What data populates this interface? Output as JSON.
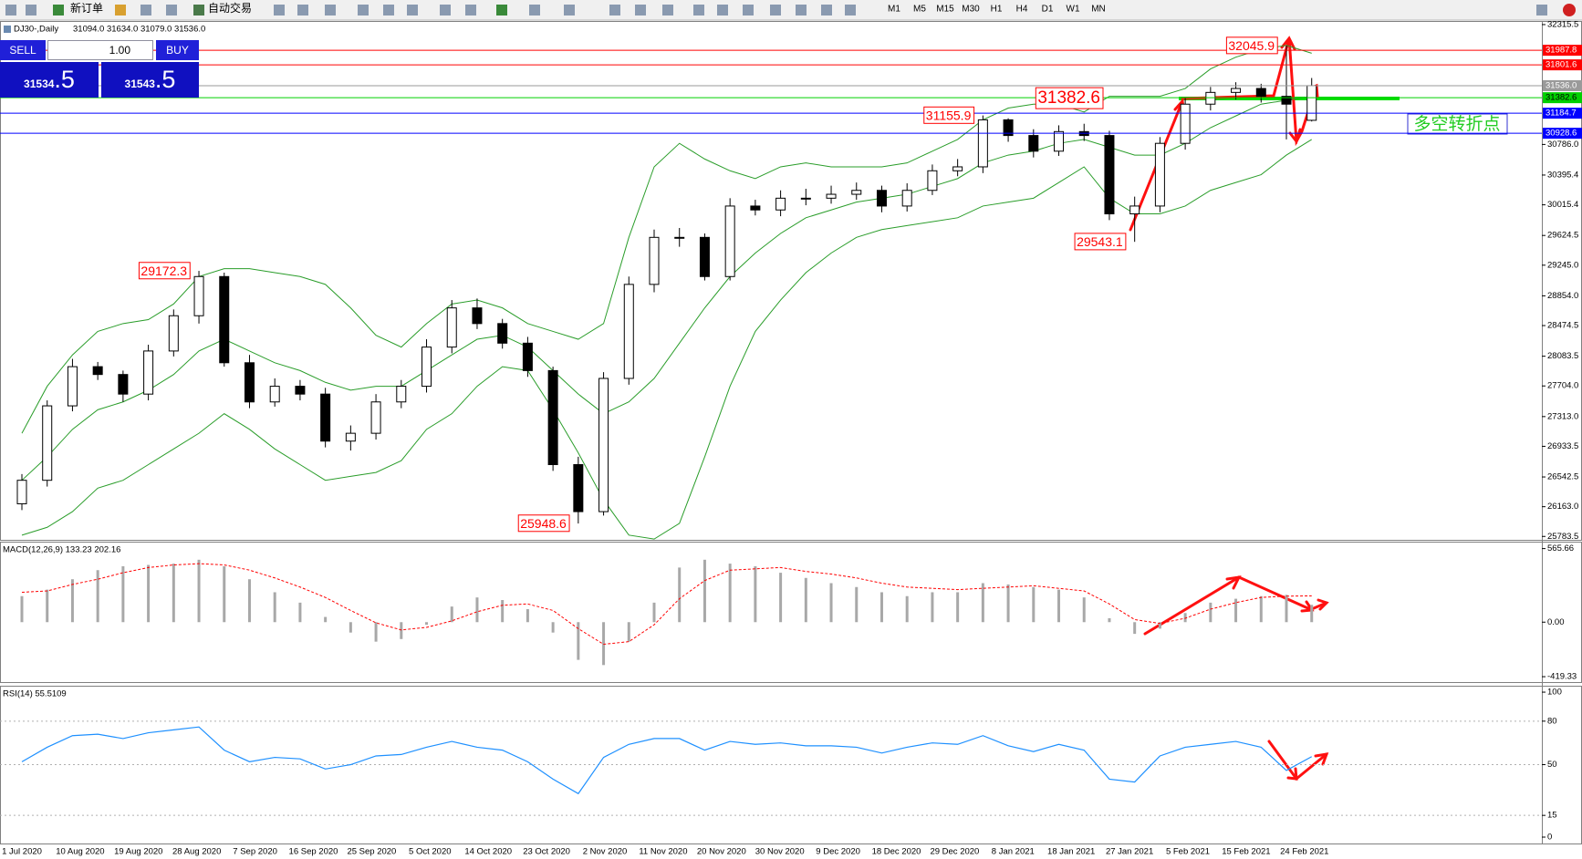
{
  "toolbar": {
    "buttons": [
      "新订单",
      "自动交易"
    ],
    "timeframes": [
      "M1",
      "M5",
      "M15",
      "M30",
      "H1",
      "H4",
      "D1",
      "W1",
      "MN"
    ]
  },
  "trade_panel": {
    "sell": "SELL",
    "lot": "1.00",
    "buy": "BUY",
    "bid": "31534",
    "bid_pips": ".5",
    "ask": "31543",
    "ask_pips": ".5"
  },
  "chart_data": [
    {
      "type": "candlestick",
      "title": "DJ30-,Daily",
      "subtitle": "31094.0 31634.0 31079.0 31536.0",
      "open": [
        26200,
        26500,
        27450,
        27950,
        27850,
        27600,
        28150,
        28600,
        29100,
        28000,
        27500,
        27700,
        27600,
        27000,
        27100,
        27500,
        27700,
        28200,
        28700,
        28500,
        28250,
        27900,
        26700,
        26100,
        27800,
        29000,
        29600,
        29600,
        29100,
        30000,
        29950,
        30100,
        30100,
        30150,
        30200,
        30000,
        30200,
        30450,
        30500,
        31100,
        30900,
        30700,
        30950,
        30900,
        29900,
        30000,
        30800,
        31300,
        31450,
        31500,
        31400,
        31094
      ],
      "high": [
        26580,
        27520,
        28050,
        28010,
        27900,
        28230,
        28680,
        29172.3,
        29150,
        28100,
        27800,
        27780,
        27680,
        27200,
        27600,
        27780,
        28300,
        28800,
        28820,
        28560,
        28330,
        27950,
        26800,
        27880,
        29100,
        29700,
        29720,
        29650,
        30100,
        30080,
        30200,
        30220,
        30260,
        30300,
        30260,
        30290,
        30530,
        30600,
        31155.9,
        31120,
        30980,
        31030,
        31050,
        30960,
        30120,
        30880,
        31380,
        31520,
        31580,
        31560,
        32045.9,
        31634
      ],
      "low": [
        26120,
        26420,
        27380,
        27780,
        27500,
        27520,
        28080,
        28500,
        27950,
        27420,
        27440,
        27520,
        26920,
        26880,
        27020,
        27420,
        27620,
        28120,
        28430,
        28180,
        27820,
        26620,
        25948.6,
        26050,
        27720,
        28900,
        29480,
        29050,
        29050,
        29880,
        29870,
        30010,
        30030,
        30080,
        29920,
        29930,
        30140,
        30380,
        30420,
        30820,
        30620,
        30640,
        30830,
        29820,
        29543.1,
        29920,
        30720,
        31220,
        31360,
        31320,
        30850,
        31079
      ],
      "close": [
        26500,
        27450,
        27950,
        27850,
        27600,
        28150,
        28600,
        29100,
        28000,
        27500,
        27700,
        27600,
        27000,
        27100,
        27500,
        27700,
        28200,
        28700,
        28500,
        28250,
        27900,
        26700,
        26100,
        27800,
        29000,
        29600,
        29600,
        29100,
        30000,
        29950,
        30100,
        30100,
        30150,
        30200,
        30000,
        30200,
        30450,
        30500,
        31100,
        30900,
        30700,
        30950,
        30900,
        29900,
        30000,
        30800,
        31300,
        31450,
        31500,
        31400,
        31300,
        31536
      ],
      "bands": {
        "color": "#2a9d2a",
        "upper": [
          27100,
          27700,
          28100,
          28400,
          28500,
          28550,
          28750,
          29100,
          29200,
          29200,
          29150,
          29100,
          29000,
          28700,
          28350,
          28200,
          28500,
          28750,
          28800,
          28700,
          28500,
          28400,
          28300,
          28500,
          29600,
          30500,
          30800,
          30600,
          30450,
          30350,
          30500,
          30550,
          30500,
          30500,
          30500,
          30550,
          30700,
          30850,
          31100,
          31250,
          31300,
          31300,
          31200,
          31400,
          31400,
          31400,
          31500,
          31750,
          31900,
          32000,
          32050,
          31950
        ],
        "middle": [
          26500,
          26800,
          27150,
          27400,
          27500,
          27650,
          27850,
          28150,
          28300,
          28150,
          28000,
          27900,
          27750,
          27650,
          27700,
          27700,
          27900,
          28100,
          28300,
          28350,
          28200,
          27900,
          27600,
          27350,
          27500,
          27800,
          28250,
          28700,
          29100,
          29400,
          29650,
          29850,
          29950,
          30050,
          30100,
          30150,
          30250,
          30350,
          30550,
          30650,
          30700,
          30800,
          30850,
          30750,
          30650,
          30650,
          30800,
          31000,
          31150,
          31300,
          31350,
          31400
        ],
        "lower": [
          25800,
          25900,
          26100,
          26400,
          26500,
          26700,
          26900,
          27100,
          27350,
          27150,
          26900,
          26700,
          26500,
          26550,
          26600,
          26750,
          27150,
          27350,
          27700,
          27950,
          27900,
          27400,
          26850,
          26250,
          25800,
          25750,
          25950,
          26800,
          27700,
          28400,
          28800,
          29150,
          29400,
          29600,
          29700,
          29750,
          29800,
          29850,
          30000,
          30050,
          30100,
          30300,
          30500,
          30100,
          29900,
          29900,
          30000,
          30200,
          30300,
          30400,
          30650,
          30850
        ]
      },
      "levels": [
        {
          "value": 31987.8,
          "color": "#ff0000"
        },
        {
          "value": 31801.6,
          "color": "#ff0000"
        },
        {
          "value": 31536,
          "label": "31536.0",
          "color": "#9a9a9a"
        },
        {
          "value": 31382.6,
          "color": "#00d000"
        },
        {
          "value": 31184.7,
          "color": "#0000ff"
        },
        {
          "value": 30928.6,
          "color": "#0000ff"
        }
      ],
      "annotations": [
        32045.9,
        31382.6,
        31155.9,
        29543.1,
        29172.3,
        25948.6
      ],
      "note": "多空转折点",
      "ylim": [
        25740,
        32350
      ],
      "yticks": [
        32315.5,
        {
          "value": 30786,
          "label": "30786.0"
        },
        30395.4,
        30015.4,
        29624.5,
        {
          "value": 29245,
          "label": "29245.0"
        },
        {
          "value": 28854,
          "label": "28854.0"
        },
        28474.5,
        28083.5,
        {
          "value": 27704,
          "label": "27704.0"
        },
        {
          "value": 27313,
          "label": "27313.0"
        },
        26933.5,
        26542.5,
        {
          "value": 26163,
          "label": "26163.0"
        },
        25783.5
      ],
      "x_labels": [
        "1 Jul 2020",
        "10 Aug 2020",
        "19 Aug 2020",
        "28 Aug 2020",
        "7 Sep 2020",
        "16 Sep 2020",
        "25 Sep 2020",
        "5 Oct 2020",
        "14 Oct 2020",
        "23 Oct 2020",
        "2 Nov 2020",
        "11 Nov 2020",
        "20 Nov 2020",
        "30 Nov 2020",
        "9 Dec 2020",
        "18 Dec 2020",
        "29 Dec 2020",
        "8 Jan 2021",
        "18 Jan 2021",
        "27 Jan 2021",
        "5 Feb 2021",
        "15 Feb 2021",
        "24 Feb 2021"
      ]
    },
    {
      "type": "macd",
      "title": "MACD(12,26,9) 133.23 202.16",
      "histogram": [
        200,
        250,
        330,
        400,
        430,
        440,
        450,
        480,
        430,
        330,
        230,
        150,
        40,
        -80,
        -150,
        -130,
        -20,
        120,
        190,
        170,
        100,
        -80,
        -290,
        -330,
        -150,
        150,
        420,
        480,
        450,
        430,
        380,
        340,
        300,
        270,
        230,
        200,
        230,
        230,
        300,
        290,
        270,
        250,
        190,
        30,
        -90,
        -50,
        70,
        150,
        180,
        200,
        210,
        133
      ],
      "signal": [
        230,
        240,
        290,
        330,
        380,
        420,
        440,
        450,
        440,
        400,
        340,
        270,
        190,
        90,
        -5,
        -60,
        -40,
        10,
        80,
        130,
        140,
        90,
        -50,
        -170,
        -150,
        -20,
        180,
        320,
        400,
        410,
        420,
        390,
        370,
        340,
        300,
        270,
        260,
        250,
        260,
        270,
        280,
        260,
        240,
        140,
        20,
        -10,
        30,
        100,
        150,
        190,
        200,
        202
      ],
      "histogram_color": "#a8a8a8",
      "signal_color": "#ff0000",
      "ylim": [
        -461,
        612
      ],
      "yticks": [
        565.66,
        {
          "value": 0,
          "label": "0.00"
        },
        -419.33
      ]
    },
    {
      "type": "line",
      "title": "RSI(14) 55.5109",
      "values": [
        52,
        62,
        70,
        71,
        68,
        72,
        74,
        76,
        60,
        52,
        55,
        54,
        47,
        50,
        56,
        57,
        62,
        66,
        62,
        60,
        52,
        40,
        30,
        55,
        64,
        68,
        68,
        60,
        66,
        64,
        65,
        63,
        63,
        62,
        58,
        62,
        65,
        64,
        70,
        63,
        59,
        64,
        60,
        40,
        38,
        56,
        62,
        64,
        66,
        62,
        46,
        55.5
      ],
      "color": "#1e90ff",
      "grid": true,
      "ylim": [
        -4.4,
        103.8
      ],
      "yticks": [
        100,
        80,
        50,
        15,
        0
      ]
    }
  ]
}
